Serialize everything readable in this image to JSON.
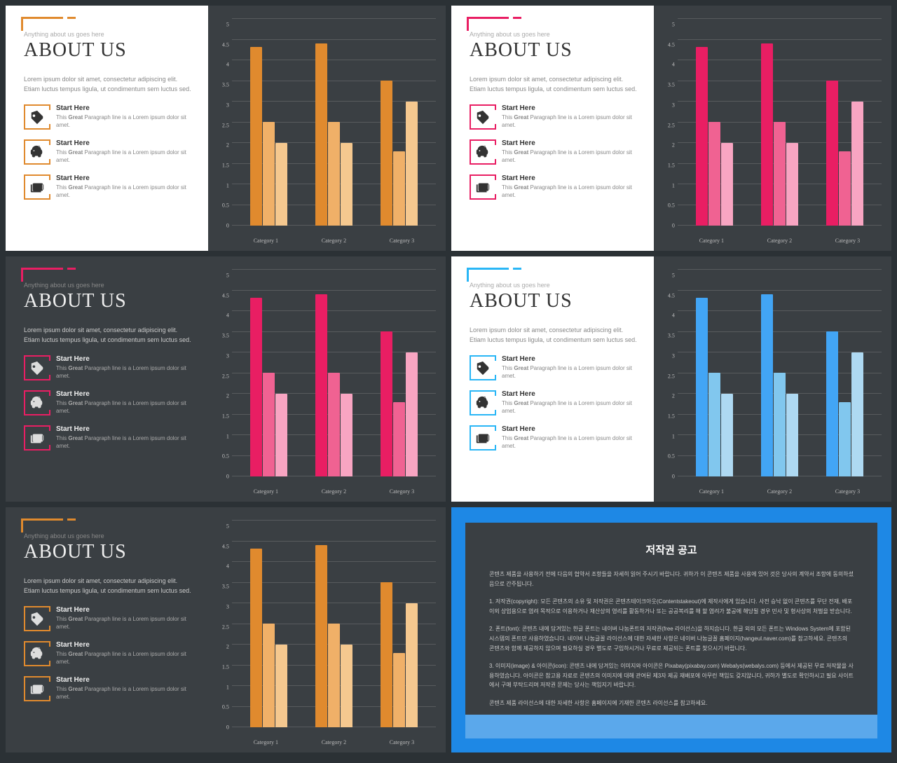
{
  "subtitle": "Anything about us goes here",
  "title": "ABOUT US",
  "desc": "Lorem ipsum dolor sit amet, consectetur adipiscing elit. Etiam luctus tempus ligula, ut condimentum sem luctus sed.",
  "items": [
    {
      "title": "Start Here",
      "desc": "This Great Paragraph line is a Lorem ipsum dolor sit amet."
    },
    {
      "title": "Start Here",
      "desc": "This Great Paragraph line is a Lorem ipsum dolor sit amet."
    },
    {
      "title": "Start Here",
      "desc": "This Great Paragraph line is a Lorem ipsum dolor sit amet."
    }
  ],
  "chart": {
    "type": "bar",
    "ylim": [
      0,
      5
    ],
    "ytick_step": 0.5,
    "categories": [
      "Category 1",
      "Category 2",
      "Category 3"
    ],
    "series": [
      [
        4.3,
        2.5,
        2.0
      ],
      [
        4.4,
        2.5,
        2.0
      ],
      [
        3.5,
        1.8,
        3.0
      ]
    ],
    "grid_color": "#888888"
  },
  "themes": [
    {
      "accent": "#e08a2e",
      "bars": [
        "#e08a2e",
        "#f0b068",
        "#f5c88f"
      ],
      "mode": "light"
    },
    {
      "accent": "#e91e63",
      "bars": [
        "#e91e63",
        "#f06292",
        "#f8a5c2"
      ],
      "mode": "light"
    },
    {
      "accent": "#e91e63",
      "bars": [
        "#e91e63",
        "#f06292",
        "#f8a5c2"
      ],
      "mode": "dark"
    },
    {
      "accent": "#29b6f6",
      "bars": [
        "#42a5f5",
        "#81c7ee",
        "#aed9f2"
      ],
      "mode": "light"
    },
    {
      "accent": "#e08a2e",
      "bars": [
        "#e08a2e",
        "#f0b068",
        "#f5c88f"
      ],
      "mode": "dark"
    }
  ],
  "copyright": {
    "title": "저작권 공고",
    "p1": "콘텐츠 제품을 사용하기 전에 다음의 협약서 조항들을 자세히 읽어 주시기 바랍니다. 귀하가 이 콘텐츠 제품을 사용에 있어 것은 당사의 계약서 조항에 동의하셨음으로 간주됩니다.",
    "p2": "1. 저작권(copyright): 모든 콘텐츠의 소유 및 저작권은 콘텐츠테이크아웃(Contentstakeout)에 제작사에게 있습니다. 사전 승낙 없이 콘텐츠를 무단 전재, 배포 이외 상업용으로 염려 목적으로 이용하거나 재산상의 영리를 활동하거나 또는 공공복리를 해 할 염려가 불공에 해당될 경우 민사 및 형사상의 처벌을 받습니다.",
    "p3": "2. 폰트(font): 콘텐츠 내에 담겨있는 한글 폰트는 네이버 나눔폰트의 저작권(free 라이선스)을 하지습니다. 한글 외의 모든 폰트는 Windows System에 포함된 시스템의 폰트만 사용하였습니다. 네이버 나눔글꼴 라이선스에 대한 자세한 사항은 네이버 나눔글꼴 홈페이지(hangeul.naver.com)를 참고하세요. 콘텐츠의 콘텐츠와 함께 제공하지 않으며 필요하실 경우 별도로 구입하시거나 무료로 제공되는 폰트를 찾으시기 바랍니다.",
    "p4": "3. 이미지(image) & 아이콘(icon): 콘텐츠 내에 담겨있는 이미지와 아이콘은 Pixabay(pixabay.com) Webalys(webalys.com) 등에서 제공된 무료 저작물을 사용하였습니다. 아이콘은 참고용 자료로 콘텐츠의 이미지에 대해 관여된 제3자 제공 재배포에 아무런 책임도 갖지않니다, 귀하가 별도로 확인하시고 필요 사이트에서 구매 부탁드리며 저작권 문제는 당사는 책임지기 바랍니다.",
    "p5": "콘텐츠 제품 라이선스에 대한 자세한 사항은 홈페이지에 기재한 콘텐츠 라이선스를 참고하세요."
  }
}
